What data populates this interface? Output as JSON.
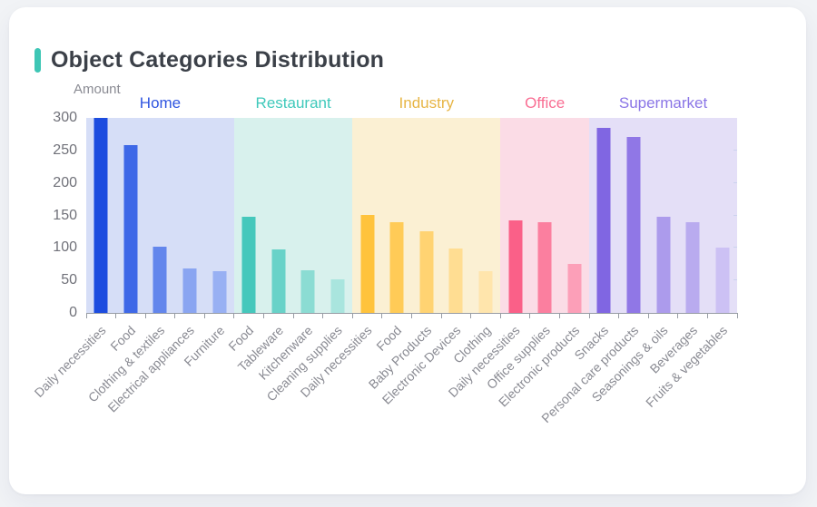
{
  "page": {
    "background": "#F1F3F6",
    "card_background": "#FFFFFF"
  },
  "header": {
    "accent_color": "#3EC6B5"
  },
  "colors": {
    "axis_line": "#979CA4",
    "x_label": "#8A8B93",
    "y_label": "#707179",
    "title": "#3B4048"
  },
  "chart_data": {
    "type": "bar",
    "title": "Object Categories Distribution",
    "ylabel": "Amount",
    "ylim": [
      0,
      300
    ],
    "yticks": [
      0,
      50,
      100,
      150,
      200,
      250,
      300
    ],
    "grid": false,
    "legend_position": "top",
    "groups": [
      {
        "name": "Home",
        "label_color": "#2F55E0",
        "band_color": "#D6DEF7",
        "categories": [
          "Daily necessities",
          "Food",
          "Clothing & textiles",
          "Electrical appliances",
          "Furniture"
        ],
        "values": [
          300,
          258,
          102,
          69,
          64
        ],
        "bar_colors": [
          "#1C4CDF",
          "#3E68E7",
          "#6386EC",
          "#8AA5F1",
          "#98B0F3"
        ]
      },
      {
        "name": "Restaurant",
        "label_color": "#3FC9BB",
        "band_color": "#D8F1ED",
        "categories": [
          "Food",
          "Tableware",
          "Kitchenware",
          "Cleaning supplies"
        ],
        "values": [
          148,
          97,
          65,
          51
        ],
        "bar_colors": [
          "#45C8BC",
          "#68D2C8",
          "#8BDCD3",
          "#A9E5DE"
        ]
      },
      {
        "name": "Industry",
        "label_color": "#E7B545",
        "band_color": "#FBF0D3",
        "categories": [
          "Daily necessities",
          "Food",
          "Baby Products",
          "Electronic Devices",
          "Clothing"
        ],
        "values": [
          151,
          139,
          126,
          99,
          64
        ],
        "bar_colors": [
          "#FFC33C",
          "#FFCB57",
          "#FFD372",
          "#FFDD92",
          "#FFE5AC"
        ]
      },
      {
        "name": "Office",
        "label_color": "#F96E93",
        "band_color": "#FBDCE6",
        "categories": [
          "Daily necessities",
          "Office supplies",
          "Electronic products"
        ],
        "values": [
          143,
          139,
          76
        ],
        "bar_colors": [
          "#FA6088",
          "#FB7F9F",
          "#FC9FB8"
        ]
      },
      {
        "name": "Supermarket",
        "label_color": "#8A75E6",
        "band_color": "#E4DFF7",
        "categories": [
          "Snacks",
          "Personal care products",
          "Seasonings & oils",
          "Beverages",
          "Fruits & vegetables"
        ],
        "values": [
          284,
          271,
          148,
          140,
          101
        ],
        "bar_colors": [
          "#8066E2",
          "#9077E6",
          "#AC9BEC",
          "#B9ABEF",
          "#CCC1F4"
        ]
      }
    ]
  }
}
